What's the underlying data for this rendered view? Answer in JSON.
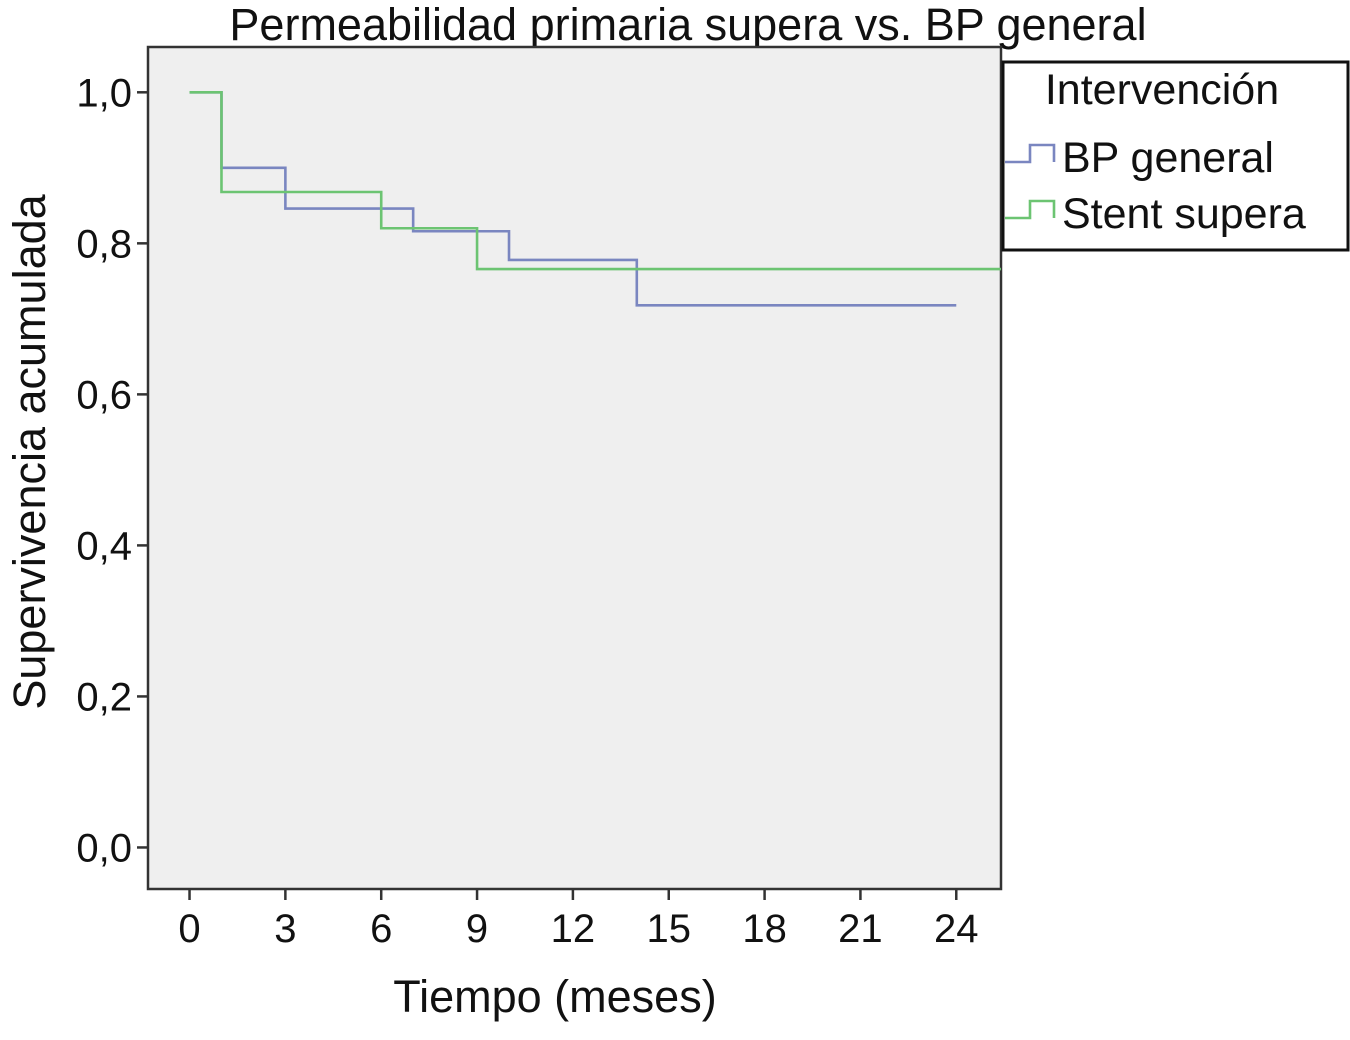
{
  "chart_data": {
    "type": "line",
    "step": true,
    "title": "Permeabilidad primaria supera vs. BP general",
    "xlabel": "Tiempo (meses)",
    "ylabel": "Supervivencia acumulada",
    "xlim": [
      -1.3,
      25.4
    ],
    "ylim": [
      -0.055,
      1.06
    ],
    "xticks": [
      0,
      3,
      6,
      9,
      12,
      15,
      18,
      21,
      24
    ],
    "xtick_labels": [
      "0",
      "3",
      "6",
      "9",
      "12",
      "15",
      "18",
      "21",
      "24"
    ],
    "yticks": [
      0.0,
      0.2,
      0.4,
      0.6,
      0.8,
      1.0
    ],
    "ytick_labels": [
      "0,0",
      "0,2",
      "0,4",
      "0,6",
      "0,8",
      "1,0"
    ],
    "grid": false,
    "plot_background": "#efefef",
    "legend": {
      "title": "Intervención",
      "position": "right-top-outside"
    },
    "series": [
      {
        "name": "BP general",
        "color": "#7a86c0",
        "points": [
          [
            0,
            1.0
          ],
          [
            1,
            0.9
          ],
          [
            3,
            0.846
          ],
          [
            7,
            0.816
          ],
          [
            10,
            0.778
          ],
          [
            14,
            0.718
          ],
          [
            24,
            0.718
          ]
        ]
      },
      {
        "name": "Stent supera",
        "color": "#6cc472",
        "points": [
          [
            0,
            1.0
          ],
          [
            1,
            0.868
          ],
          [
            6,
            0.82
          ],
          [
            9,
            0.766
          ],
          [
            25.4,
            0.766
          ]
        ]
      }
    ]
  }
}
